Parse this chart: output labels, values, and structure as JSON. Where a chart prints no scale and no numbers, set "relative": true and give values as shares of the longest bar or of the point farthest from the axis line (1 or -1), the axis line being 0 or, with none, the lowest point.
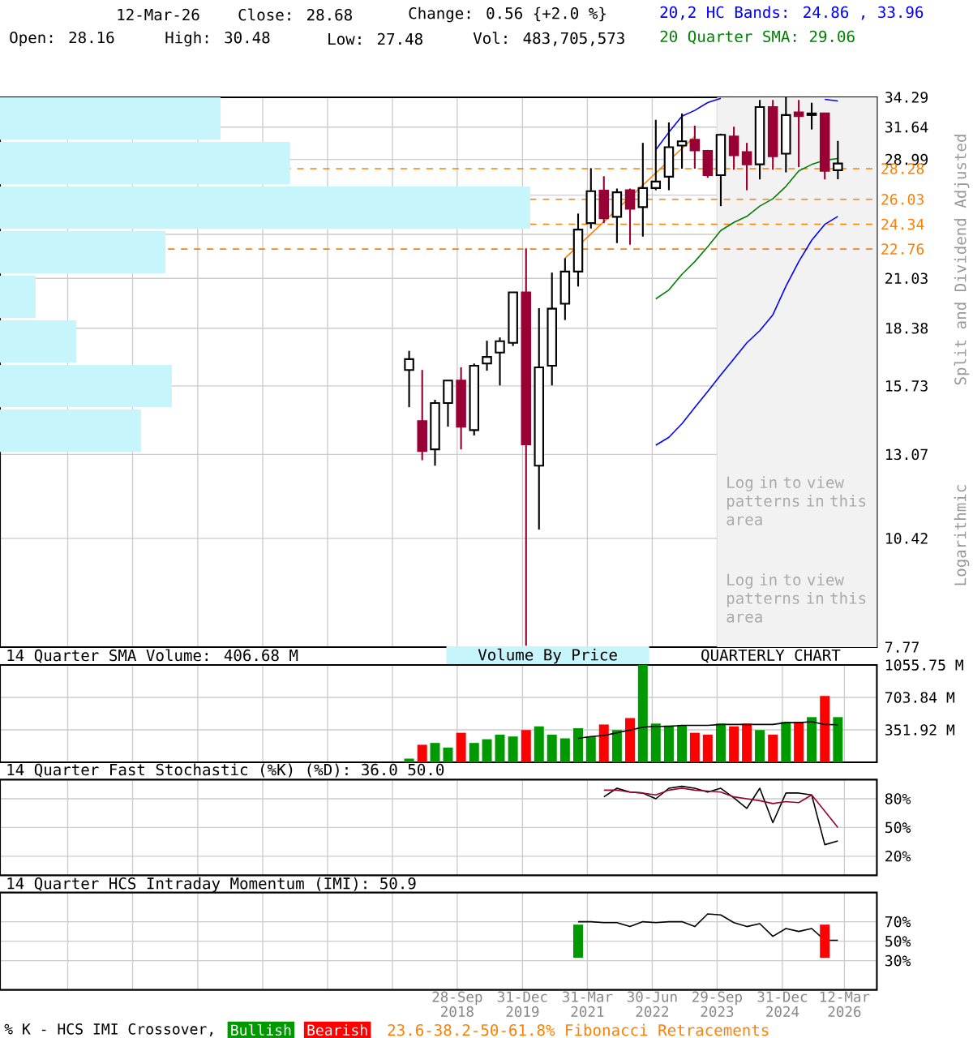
{
  "chart_data": [
    {
      "type": "candlestick",
      "ylabel": "Split and Dividend Adjusted",
      "annotations": [
        "12-Mar-26",
        "Close: 28.68",
        "Change: 0.56 {+2.0 %}",
        "Open: 28.16",
        "High: 30.48",
        "Low: 27.48",
        "Vol: 483,705,573",
        "Log in to view patterns in this area",
        "Log in to view patterns in this area",
        "Logarithmic",
        "23.6-38.2-50-61.8% Fibonacci Retracements"
      ],
      "x": [
        "2017-10-25",
        "2018-01-25",
        "2018-04-25",
        "2018-07-25",
        "2018-10-25",
        "2019-01-25",
        "2019-04-25",
        "2019-07-25",
        "2019-10-25",
        "2020-01-25",
        "2020-04-25",
        "2020-07-25",
        "2020-10-25",
        "2021-01-25",
        "2021-04-25",
        "2021-07-25",
        "2021-10-25",
        "2022-01-25",
        "2022-04-25",
        "2022-07-25",
        "2022-10-25",
        "2023-01-25",
        "2023-04-25",
        "2023-07-25",
        "2023-10-25",
        "2024-01-25",
        "2024-04-25",
        "2024-07-25",
        "2024-10-25",
        "2025-01-25",
        "2025-04-25",
        "2025-07-25",
        "2025-10-25",
        "2026-01-25"
      ],
      "ohlc": [
        [
          16.42,
          17.29,
          14.85,
          16.91
        ],
        [
          14.3,
          16.42,
          12.87,
          13.19
        ],
        [
          13.25,
          15.15,
          12.68,
          15.02
        ],
        [
          15.02,
          15.96,
          14.09,
          15.96
        ],
        [
          15.96,
          16.54,
          13.25,
          14.09
        ],
        [
          13.96,
          16.71,
          13.76,
          16.61
        ],
        [
          16.71,
          17.77,
          16.39,
          17.01
        ],
        [
          17.21,
          17.93,
          15.75,
          17.75
        ],
        [
          17.67,
          20.25,
          17.52,
          20.25
        ],
        [
          20.25,
          22.8,
          7.8,
          13.43
        ],
        [
          12.68,
          19.41,
          10.67,
          16.54
        ],
        [
          16.61,
          21.36,
          15.75,
          19.38
        ],
        [
          19.64,
          22.21,
          18.79,
          21.42
        ],
        [
          21.42,
          25.05,
          20.57,
          23.99
        ],
        [
          24.41,
          28.32,
          24.06,
          26.61
        ],
        [
          26.65,
          27.71,
          24.41,
          24.73
        ],
        [
          24.83,
          26.8,
          23.13,
          26.53
        ],
        [
          26.68,
          26.8,
          23.03,
          25.38
        ],
        [
          25.49,
          30.32,
          23.54,
          26.84
        ],
        [
          26.84,
          32.27,
          26.68,
          27.31
        ],
        [
          27.67,
          32.04,
          26.68,
          29.97
        ],
        [
          30.1,
          32.83,
          28.28,
          30.45
        ],
        [
          30.58,
          31.76,
          28.28,
          29.71
        ],
        [
          29.67,
          29.75,
          27.59,
          27.79
        ],
        [
          27.79,
          31.08,
          25.56,
          30.99
        ],
        [
          30.85,
          31.67,
          28.2,
          29.32
        ],
        [
          29.58,
          30.32,
          26.68,
          28.61
        ],
        [
          28.61,
          34.04,
          27.47,
          33.4
        ],
        [
          33.4,
          34.04,
          28.2,
          29.24
        ],
        [
          29.45,
          34.29,
          28.0,
          32.69
        ],
        [
          32.92,
          34.04,
          28.4,
          32.59
        ],
        [
          32.69,
          33.79,
          31.44,
          32.83
        ],
        [
          32.83,
          32.83,
          27.47,
          28.11
        ],
        [
          28.16,
          30.48,
          27.48,
          28.68
        ]
      ],
      "colors": [
        "#ffffff",
        "#990033",
        "#ffffff",
        "#ffffff",
        "#990033",
        "#ffffff",
        "#ffffff",
        "#ffffff",
        "#ffffff",
        "#990033",
        "#ffffff",
        "#ffffff",
        "#ffffff",
        "#ffffff",
        "#ffffff",
        "#990033",
        "#ffffff",
        "#990033",
        "#ffffff",
        "#ffffff",
        "#ffffff",
        "#ffffff",
        "#990033",
        "#990033",
        "#ffffff",
        "#990033",
        "#990033",
        "#ffffff",
        "#990033",
        "#ffffff",
        "#990033",
        "#ffffff",
        "#990033",
        "#ffffff"
      ],
      "series": [
        {
          "type": "line",
          "name": "20,2 HC Bands: 24.86 , 33.96",
          "color": "#0000ff",
          "x": [
            "2022-07-25",
            "2022-10-25",
            "2023-01-25",
            "2023-04-25",
            "2023-07-25",
            "2023-10-25",
            "2024-01-25",
            "2024-04-25",
            "2024-07-25",
            "2024-10-25",
            "2025-01-25",
            "2025-04-25",
            "2025-07-25",
            "2025-10-25",
            "2026-01-25"
          ],
          "values": [
            29.75,
            31.2,
            32.59,
            33.1,
            33.8,
            34.2,
            null,
            null,
            null,
            null,
            null,
            null,
            null,
            34.1,
            33.96
          ]
        },
        {
          "type": "line",
          "color": "#0000ff",
          "x": [
            "2022-07-25",
            "2022-10-25",
            "2023-01-25",
            "2023-04-25",
            "2023-07-25",
            "2023-10-25",
            "2024-01-25",
            "2024-04-25",
            "2024-07-25",
            "2024-10-25",
            "2025-01-25",
            "2025-04-25",
            "2025-07-25",
            "2025-10-25",
            "2026-01-25"
          ],
          "values": [
            13.4,
            13.69,
            14.2,
            14.84,
            15.49,
            16.21,
            16.92,
            17.67,
            18.26,
            19.06,
            20.59,
            22.0,
            23.31,
            24.33,
            24.86
          ]
        },
        {
          "type": "line",
          "name": "20 Quarter SMA: 29.06",
          "color": "#008000",
          "x": [
            "2022-07-25",
            "2022-10-25",
            "2023-01-25",
            "2023-04-25",
            "2023-07-25",
            "2023-10-25",
            "2024-01-25",
            "2024-04-25",
            "2024-07-25",
            "2024-10-25",
            "2025-01-25",
            "2025-04-25",
            "2025-07-25",
            "2025-10-25",
            "2026-01-25"
          ],
          "values": [
            19.9,
            20.38,
            21.26,
            22.0,
            22.9,
            23.93,
            24.46,
            24.86,
            25.56,
            26.07,
            26.96,
            28.11,
            28.6,
            28.93,
            29.06
          ]
        },
        {
          "type": "line",
          "color": "#ff8000",
          "x": [
            "2020-10-25",
            "2023-04-25"
          ],
          "values": [
            22.21,
            30.85
          ]
        }
      ],
      "xlim": [
        "2009-12-10",
        "2026-10-26"
      ],
      "xticks": [
        "2011-03-31",
        "2012-06-29",
        "2013-09-30",
        "2014-12-31",
        "2016-03-31",
        "2017-06-30",
        "2018-09-28",
        "2019-12-31",
        "2021-03-31",
        "2022-06-30",
        "2023-09-29",
        "2024-12-31",
        "2026-03-12"
      ],
      "ylim": [
        7.77,
        34.29
      ],
      "yticks": [
        7.77,
        10.42,
        13.07,
        15.73,
        18.38,
        21.03,
        {
          "value": 23.68,
          "label": null
        },
        {
          "value": 26.33,
          "label": null
        },
        28.99,
        31.64,
        34.29
      ],
      "log": true,
      "grid": true,
      "legend": "top right",
      "tick_labels": "y",
      "ref_lines": [
        {
          "axis": "y",
          "value": 28.28,
          "label": "28.28",
          "color": "#ff8000",
          "line_style": "dashed"
        },
        {
          "axis": "y",
          "value": 26.03,
          "label": "26.03",
          "color": "#ff8000",
          "line_style": "dashed"
        },
        {
          "axis": "y",
          "value": 24.34,
          "label": "24.34",
          "color": "#ff8000",
          "line_style": "dashed"
        },
        {
          "axis": "y",
          "value": 22.76,
          "label": "22.76",
          "color": "#ff8000",
          "line_style": "dashed"
        }
      ],
      "bands": [
        {
          "axis": "x",
          "from": "2023-09-29",
          "to": "2026-10-26",
          "color": "#f2f2f2"
        }
      ]
    },
    {
      "type": "bar",
      "orientation": "horizontal",
      "relative": true,
      "title": "Volume By Price",
      "categories": [
        null,
        null,
        null,
        null,
        null,
        null,
        null,
        null
      ],
      "values": [
        0.416,
        0.547,
        1,
        0.312,
        0.067,
        0.144,
        0.324,
        0.266
      ],
      "color": "#c6f5fc"
    },
    {
      "type": "bar",
      "title": "14 Quarter SMA Volume: 406.68 M",
      "annotations": [
        "QUARTERLY CHART"
      ],
      "series": [
        {
          "type": "bar",
          "x": [
            "2017-10-25",
            "2018-01-25",
            "2018-04-25",
            "2018-07-25",
            "2018-10-25",
            "2019-01-25",
            "2019-04-25",
            "2019-07-25",
            "2019-10-25",
            "2020-01-25",
            "2020-04-25",
            "2020-07-25",
            "2020-10-25",
            "2021-01-25",
            "2021-04-25",
            "2021-07-25",
            "2021-10-25",
            "2022-01-25",
            "2022-04-25",
            "2022-07-25",
            "2022-10-25",
            "2023-01-25",
            "2023-04-25",
            "2023-07-25",
            "2023-10-25",
            "2024-01-25",
            "2024-04-25",
            "2024-07-25",
            "2024-10-25",
            "2025-01-25",
            "2025-04-25",
            "2025-07-25",
            "2025-10-25",
            "2026-01-25"
          ],
          "values": [
            40,
            190,
            210,
            160,
            320,
            210,
            250,
            300,
            280,
            350,
            390,
            300,
            260,
            370,
            280,
            410,
            350,
            480,
            1055.75,
            420,
            400,
            400,
            320,
            300,
            420,
            390,
            420,
            350,
            300,
            440,
            440,
            490,
            720,
            490
          ],
          "colors": [
            "#009900",
            "#ff0000",
            "#009900",
            "#009900",
            "#ff0000",
            "#009900",
            "#009900",
            "#009900",
            "#009900",
            "#ff0000",
            "#009900",
            "#009900",
            "#009900",
            "#009900",
            "#009900",
            "#ff0000",
            "#009900",
            "#ff0000",
            "#009900",
            "#009900",
            "#009900",
            "#009900",
            "#ff0000",
            "#ff0000",
            "#009900",
            "#ff0000",
            "#ff0000",
            "#009900",
            "#ff0000",
            "#009900",
            "#ff0000",
            "#009900",
            "#ff0000",
            "#009900"
          ]
        },
        {
          "type": "line",
          "color": "#000000",
          "x": [
            "2021-01-25",
            "2021-04-25",
            "2021-07-25",
            "2021-10-25",
            "2022-01-25",
            "2022-04-25",
            "2022-07-25",
            "2022-10-25",
            "2023-01-25",
            "2023-04-25",
            "2023-07-25",
            "2023-10-25",
            "2024-01-25",
            "2024-04-25",
            "2024-07-25",
            "2024-10-25",
            "2025-01-25",
            "2025-04-25",
            "2025-07-25",
            "2025-10-25",
            "2026-01-25"
          ],
          "values": [
            260,
            280,
            290,
            320,
            350,
            380,
            390,
            390,
            400,
            400,
            400,
            410,
            410,
            410,
            410,
            410,
            430,
            430,
            440,
            410,
            406.68
          ]
        }
      ],
      "xlim": [
        "2009-12-10",
        "2026-10-26"
      ],
      "xticks": [
        "2011-03-31",
        "2012-06-29",
        "2013-09-30",
        "2014-12-31",
        "2016-03-31",
        "2017-06-30",
        "2018-09-28",
        "2019-12-31",
        "2021-03-31",
        "2022-06-30",
        "2023-09-29",
        "2024-12-31",
        "2026-03-12"
      ],
      "ylim": [
        0,
        1055.75
      ],
      "yticks": [
        {
          "value": 351.92,
          "label": "351.92 M"
        },
        {
          "value": 703.84,
          "label": "703.84 M"
        },
        {
          "value": 1055.75,
          "label": "1055.75 M"
        }
      ],
      "grid": true,
      "tick_labels": "y"
    },
    {
      "type": "line",
      "title": "14 Quarter Fast Stochastic (%K) (%D): 36.0 50.0",
      "series": [
        {
          "color": "#000000",
          "x": [
            "2021-07-25",
            "2021-10-25",
            "2022-01-25",
            "2022-04-25",
            "2022-07-25",
            "2022-10-25",
            "2023-01-25",
            "2023-04-25",
            "2023-07-25",
            "2023-10-25",
            "2024-01-25",
            "2024-04-25",
            "2024-07-25",
            "2024-10-25",
            "2025-01-25",
            "2025-04-25",
            "2025-07-25",
            "2025-10-25",
            "2026-01-25"
          ],
          "values": [
            82,
            91,
            87,
            86,
            80,
            91,
            93,
            91,
            87,
            91,
            81,
            70,
            91,
            55,
            86,
            86,
            84,
            32,
            36
          ]
        },
        {
          "color": "#990033",
          "x": [
            "2021-07-25",
            "2021-10-25",
            "2022-01-25",
            "2022-04-25",
            "2022-07-25",
            "2022-10-25",
            "2023-01-25",
            "2023-04-25",
            "2023-07-25",
            "2023-10-25",
            "2024-01-25",
            "2024-04-25",
            "2024-07-25",
            "2024-10-25",
            "2025-01-25",
            "2025-04-25",
            "2025-07-25",
            "2025-10-25",
            "2026-01-25"
          ],
          "values": [
            89,
            89,
            87,
            86,
            84,
            89,
            91,
            89,
            88,
            87,
            82,
            80,
            78,
            75,
            77,
            76,
            84,
            67,
            50
          ]
        }
      ],
      "xlim": [
        "2009-12-10",
        "2026-10-26"
      ],
      "xticks": [
        "2011-03-31",
        "2012-06-29",
        "2013-09-30",
        "2014-12-31",
        "2016-03-31",
        "2017-06-30",
        "2018-09-28",
        "2019-12-31",
        "2021-03-31",
        "2022-06-30",
        "2023-09-29",
        "2024-12-31",
        "2026-03-12"
      ],
      "ylim": [
        0,
        100
      ],
      "yticks": [
        {
          "value": 20,
          "label": "20%"
        },
        {
          "value": 50,
          "label": "50%"
        },
        {
          "value": 80,
          "label": "80%"
        }
      ],
      "grid": true,
      "tick_labels": "y"
    },
    {
      "type": "line",
      "title": "14 Quarter HCS Intraday Momentum (IMI): 50.9",
      "legend": "bottom",
      "legend_title": "% K - HCS IMI Crossover,",
      "series": [
        {
          "color": "#000000",
          "x": [
            "2021-01-25",
            "2021-04-25",
            "2021-07-25",
            "2021-10-25",
            "2022-01-25",
            "2022-04-25",
            "2022-07-25",
            "2022-10-25",
            "2023-01-25",
            "2023-04-25",
            "2023-07-25",
            "2023-10-25",
            "2024-01-25",
            "2024-04-25",
            "2024-07-25",
            "2024-10-25",
            "2025-01-25",
            "2025-04-25",
            "2025-07-25",
            "2025-10-25",
            "2026-01-25"
          ],
          "values": [
            70,
            70,
            69,
            69,
            65,
            70,
            69,
            70,
            70,
            65,
            78,
            77,
            69,
            65,
            68,
            55,
            63,
            60,
            63,
            51,
            50.9
          ]
        },
        {
          "type": "bar",
          "name": "Bullish",
          "color": "#009900",
          "x": [
            "2021-01-25"
          ],
          "base": [
            33
          ],
          "values": [
            34
          ]
        },
        {
          "type": "bar",
          "name": "Bearish",
          "color": "#ff0000",
          "x": [
            "2025-10-25"
          ],
          "base": [
            33
          ],
          "values": [
            34
          ]
        }
      ],
      "xlim": [
        "2009-12-10",
        "2026-10-26"
      ],
      "xticks": [
        {
          "value": "2011-03-31",
          "label": null
        },
        {
          "value": "2012-06-29",
          "label": null
        },
        {
          "value": "2013-09-30",
          "label": null
        },
        {
          "value": "2014-12-31",
          "label": null
        },
        {
          "value": "2016-03-31",
          "label": null
        },
        {
          "value": "2017-06-30",
          "label": null
        },
        {
          "value": "2018-09-28",
          "label": "28-Sep 2018"
        },
        {
          "value": "2019-12-31",
          "label": "31-Dec 2019"
        },
        {
          "value": "2021-03-31",
          "label": "31-Mar 2021"
        },
        {
          "value": "2022-06-30",
          "label": "30-Jun 2022"
        },
        {
          "value": "2023-09-29",
          "label": "29-Sep 2023"
        },
        {
          "value": "2024-12-31",
          "label": "31-Dec 2024"
        },
        {
          "value": "2026-03-12",
          "label": "12-Mar 2026"
        }
      ],
      "ylim": [
        0,
        100
      ],
      "yticks": [
        {
          "value": 30,
          "label": "30%"
        },
        {
          "value": 50,
          "label": "50%"
        },
        {
          "value": 70,
          "label": "70%"
        }
      ],
      "grid": true
    }
  ]
}
